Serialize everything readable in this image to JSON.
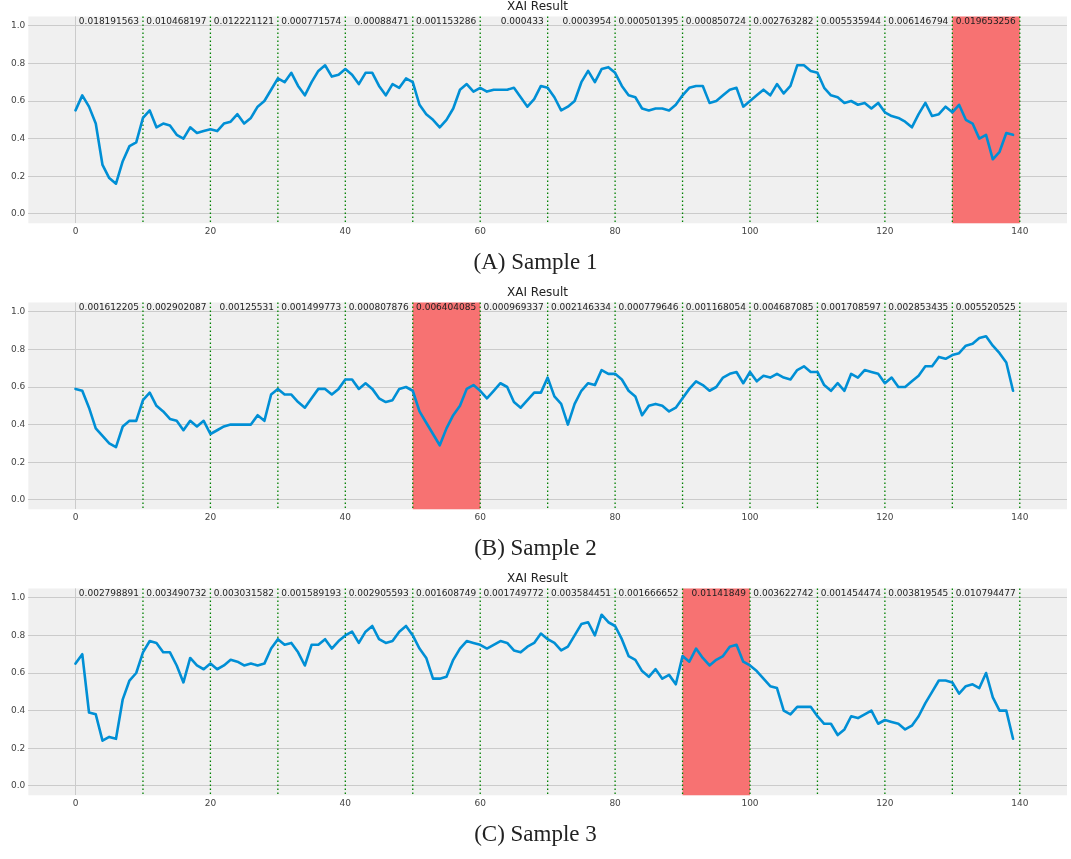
{
  "chart_data": [
    {
      "type": "line",
      "title": "XAI Result",
      "color": "#008fd5",
      "grid": true,
      "xlim": [
        -7,
        147
      ],
      "ylim": [
        -0.05,
        1.05
      ],
      "xticks": [
        0,
        20,
        40,
        60,
        80,
        100,
        120,
        140
      ],
      "yticks": [
        {
          "value": 0,
          "label": "0.0"
        },
        {
          "value": 0.2,
          "label": "0.2"
        },
        {
          "value": 0.4,
          "label": "0.4"
        },
        {
          "value": 0.6,
          "label": "0.6"
        },
        {
          "value": 0.8,
          "label": "0.8"
        },
        {
          "value": 1,
          "label": "1.0"
        }
      ],
      "x": [
        0,
        1,
        2,
        3,
        4,
        5,
        6,
        7,
        8,
        9,
        10,
        11,
        12,
        13,
        14,
        15,
        16,
        17,
        18,
        19,
        20,
        21,
        22,
        23,
        24,
        25,
        26,
        27,
        28,
        29,
        30,
        31,
        32,
        33,
        34,
        35,
        36,
        37,
        38,
        39,
        40,
        41,
        42,
        43,
        44,
        45,
        46,
        47,
        48,
        49,
        50,
        51,
        52,
        53,
        54,
        55,
        56,
        57,
        58,
        59,
        60,
        61,
        62,
        63,
        64,
        65,
        66,
        67,
        68,
        69,
        70,
        71,
        72,
        73,
        74,
        75,
        76,
        77,
        78,
        79,
        80,
        81,
        82,
        83,
        84,
        85,
        86,
        87,
        88,
        89,
        90,
        91,
        92,
        93,
        94,
        95,
        96,
        97,
        98,
        99,
        100,
        101,
        102,
        103,
        104,
        105,
        106,
        107,
        108,
        109,
        110,
        111,
        112,
        113,
        114,
        115,
        116,
        117,
        118,
        119,
        120,
        121,
        122,
        123,
        124,
        125,
        126,
        127,
        128,
        129,
        130,
        131,
        132,
        133,
        134,
        135,
        136,
        137,
        138,
        139
      ],
      "values": [
        0.55,
        0.63,
        0.57,
        0.48,
        0.26,
        0.19,
        0.16,
        0.28,
        0.36,
        0.38,
        0.51,
        0.55,
        0.46,
        0.48,
        0.47,
        0.42,
        0.4,
        0.46,
        0.43,
        0.44,
        0.45,
        0.44,
        0.48,
        0.49,
        0.53,
        0.48,
        0.51,
        0.57,
        0.6,
        0.66,
        0.72,
        0.7,
        0.75,
        0.68,
        0.63,
        0.7,
        0.76,
        0.79,
        0.73,
        0.74,
        0.77,
        0.74,
        0.69,
        0.75,
        0.75,
        0.68,
        0.63,
        0.69,
        0.67,
        0.72,
        0.7,
        0.58,
        0.53,
        0.5,
        0.46,
        0.5,
        0.56,
        0.66,
        0.69,
        0.65,
        0.67,
        0.65,
        0.66,
        0.66,
        0.66,
        0.67,
        0.62,
        0.57,
        0.61,
        0.68,
        0.67,
        0.62,
        0.55,
        0.57,
        0.6,
        0.7,
        0.76,
        0.7,
        0.77,
        0.78,
        0.75,
        0.68,
        0.63,
        0.62,
        0.56,
        0.55,
        0.56,
        0.56,
        0.55,
        0.58,
        0.63,
        0.67,
        0.68,
        0.68,
        0.59,
        0.6,
        0.63,
        0.66,
        0.67,
        0.57,
        0.6,
        0.63,
        0.66,
        0.63,
        0.69,
        0.64,
        0.68,
        0.79,
        0.79,
        0.76,
        0.75,
        0.67,
        0.63,
        0.62,
        0.59,
        0.6,
        0.58,
        0.59,
        0.56,
        0.59,
        0.54,
        0.52,
        0.51,
        0.49,
        0.46,
        0.53,
        0.59,
        0.52,
        0.53,
        0.57,
        0.54,
        0.58,
        0.5,
        0.48,
        0.4,
        0.42,
        0.29,
        0.33,
        0.43,
        0.42
      ],
      "bands": [
        {
          "axis": "x",
          "from": 130,
          "to": 140,
          "color": "#f77272"
        }
      ],
      "ref_lines": [
        {
          "axis": "x",
          "value": 10,
          "color": "#008000",
          "line_style": "dotted"
        },
        {
          "axis": "x",
          "value": 20,
          "color": "#008000",
          "line_style": "dotted"
        },
        {
          "axis": "x",
          "value": 30,
          "color": "#008000",
          "line_style": "dotted"
        },
        {
          "axis": "x",
          "value": 40,
          "color": "#008000",
          "line_style": "dotted"
        },
        {
          "axis": "x",
          "value": 50,
          "color": "#008000",
          "line_style": "dotted"
        },
        {
          "axis": "x",
          "value": 60,
          "color": "#008000",
          "line_style": "dotted"
        },
        {
          "axis": "x",
          "value": 70,
          "color": "#008000",
          "line_style": "dotted"
        },
        {
          "axis": "x",
          "value": 80,
          "color": "#008000",
          "line_style": "dotted"
        },
        {
          "axis": "x",
          "value": 90,
          "color": "#008000",
          "line_style": "dotted"
        },
        {
          "axis": "x",
          "value": 100,
          "color": "#008000",
          "line_style": "dotted"
        },
        {
          "axis": "x",
          "value": 110,
          "color": "#008000",
          "line_style": "dotted"
        },
        {
          "axis": "x",
          "value": 120,
          "color": "#008000",
          "line_style": "dotted"
        },
        {
          "axis": "x",
          "value": 130,
          "color": "#008000",
          "line_style": "dotted"
        },
        {
          "axis": "x",
          "value": 140,
          "color": "#008000",
          "line_style": "dotted"
        }
      ],
      "annotations": [
        "0.018191563",
        "0.010468197",
        "0.012221121",
        "0.000771574",
        "0.00088471",
        "0.001153286",
        "0.000433",
        "0.0003954",
        "0.000501395",
        "0.000850724",
        "0.002763282",
        "0.005535944",
        "0.006146794",
        "0.019653256",
        "(A) Sample 1"
      ]
    },
    {
      "type": "line",
      "title": "XAI Result",
      "color": "#008fd5",
      "grid": true,
      "xlim": [
        -7,
        147
      ],
      "ylim": [
        -0.05,
        1.05
      ],
      "xticks": [
        0,
        20,
        40,
        60,
        80,
        100,
        120,
        140
      ],
      "yticks": [
        {
          "value": 0,
          "label": "0.0"
        },
        {
          "value": 0.2,
          "label": "0.2"
        },
        {
          "value": 0.4,
          "label": "0.4"
        },
        {
          "value": 0.6,
          "label": "0.6"
        },
        {
          "value": 0.8,
          "label": "0.8"
        },
        {
          "value": 1,
          "label": "1.0"
        }
      ],
      "x": [
        0,
        1,
        2,
        3,
        4,
        5,
        6,
        7,
        8,
        9,
        10,
        11,
        12,
        13,
        14,
        15,
        16,
        17,
        18,
        19,
        20,
        21,
        22,
        23,
        24,
        25,
        26,
        27,
        28,
        29,
        30,
        31,
        32,
        33,
        34,
        35,
        36,
        37,
        38,
        39,
        40,
        41,
        42,
        43,
        44,
        45,
        46,
        47,
        48,
        49,
        50,
        51,
        52,
        53,
        54,
        55,
        56,
        57,
        58,
        59,
        60,
        61,
        62,
        63,
        64,
        65,
        66,
        67,
        68,
        69,
        70,
        71,
        72,
        73,
        74,
        75,
        76,
        77,
        78,
        79,
        80,
        81,
        82,
        83,
        84,
        85,
        86,
        87,
        88,
        89,
        90,
        91,
        92,
        93,
        94,
        95,
        96,
        97,
        98,
        99,
        100,
        101,
        102,
        103,
        104,
        105,
        106,
        107,
        108,
        109,
        110,
        111,
        112,
        113,
        114,
        115,
        116,
        117,
        118,
        119,
        120,
        121,
        122,
        123,
        124,
        125,
        126,
        127,
        128,
        129,
        130,
        131,
        132,
        133,
        134,
        135,
        136,
        137,
        138,
        139
      ],
      "values": [
        0.59,
        0.58,
        0.49,
        0.38,
        0.34,
        0.3,
        0.28,
        0.39,
        0.42,
        0.42,
        0.53,
        0.57,
        0.5,
        0.47,
        0.43,
        0.42,
        0.37,
        0.42,
        0.39,
        0.42,
        0.35,
        0.37,
        0.39,
        0.4,
        0.4,
        0.4,
        0.4,
        0.45,
        0.42,
        0.56,
        0.59,
        0.56,
        0.56,
        0.52,
        0.49,
        0.54,
        0.59,
        0.59,
        0.56,
        0.59,
        0.64,
        0.64,
        0.59,
        0.62,
        0.59,
        0.54,
        0.52,
        0.53,
        0.59,
        0.6,
        0.58,
        0.47,
        0.41,
        0.35,
        0.29,
        0.38,
        0.45,
        0.5,
        0.59,
        0.61,
        0.58,
        0.54,
        0.58,
        0.62,
        0.6,
        0.52,
        0.49,
        0.53,
        0.57,
        0.57,
        0.65,
        0.55,
        0.51,
        0.4,
        0.51,
        0.58,
        0.62,
        0.61,
        0.69,
        0.67,
        0.67,
        0.64,
        0.58,
        0.55,
        0.45,
        0.5,
        0.51,
        0.5,
        0.47,
        0.49,
        0.54,
        0.59,
        0.63,
        0.61,
        0.58,
        0.6,
        0.65,
        0.67,
        0.68,
        0.62,
        0.68,
        0.63,
        0.66,
        0.65,
        0.67,
        0.65,
        0.64,
        0.69,
        0.71,
        0.68,
        0.68,
        0.61,
        0.58,
        0.62,
        0.58,
        0.67,
        0.65,
        0.69,
        0.68,
        0.67,
        0.62,
        0.65,
        0.6,
        0.6,
        0.63,
        0.66,
        0.71,
        0.71,
        0.76,
        0.75,
        0.77,
        0.78,
        0.82,
        0.83,
        0.86,
        0.87,
        0.82,
        0.78,
        0.73,
        0.58
      ],
      "bands": [
        {
          "axis": "x",
          "from": 50,
          "to": 60,
          "color": "#f77272"
        }
      ],
      "ref_lines": [
        {
          "axis": "x",
          "value": 10,
          "color": "#008000",
          "line_style": "dotted"
        },
        {
          "axis": "x",
          "value": 20,
          "color": "#008000",
          "line_style": "dotted"
        },
        {
          "axis": "x",
          "value": 30,
          "color": "#008000",
          "line_style": "dotted"
        },
        {
          "axis": "x",
          "value": 40,
          "color": "#008000",
          "line_style": "dotted"
        },
        {
          "axis": "x",
          "value": 50,
          "color": "#008000",
          "line_style": "dotted"
        },
        {
          "axis": "x",
          "value": 60,
          "color": "#008000",
          "line_style": "dotted"
        },
        {
          "axis": "x",
          "value": 70,
          "color": "#008000",
          "line_style": "dotted"
        },
        {
          "axis": "x",
          "value": 80,
          "color": "#008000",
          "line_style": "dotted"
        },
        {
          "axis": "x",
          "value": 90,
          "color": "#008000",
          "line_style": "dotted"
        },
        {
          "axis": "x",
          "value": 100,
          "color": "#008000",
          "line_style": "dotted"
        },
        {
          "axis": "x",
          "value": 110,
          "color": "#008000",
          "line_style": "dotted"
        },
        {
          "axis": "x",
          "value": 120,
          "color": "#008000",
          "line_style": "dotted"
        },
        {
          "axis": "x",
          "value": 130,
          "color": "#008000",
          "line_style": "dotted"
        },
        {
          "axis": "x",
          "value": 140,
          "color": "#008000",
          "line_style": "dotted"
        }
      ],
      "annotations": [
        "0.001612205",
        "0.002902087",
        "0.00125531",
        "0.001499773",
        "0.000807876",
        "0.006404085",
        "0.000969337",
        "0.002146334",
        "0.000779646",
        "0.001168054",
        "0.004687085",
        "0.001708597",
        "0.002853435",
        "0.005520525",
        "(B) Sample 2"
      ]
    },
    {
      "type": "line",
      "title": "XAI Result",
      "color": "#008fd5",
      "grid": true,
      "xlim": [
        -7,
        147
      ],
      "ylim": [
        -0.05,
        1.05
      ],
      "xticks": [
        0,
        20,
        40,
        60,
        80,
        100,
        120,
        140
      ],
      "yticks": [
        {
          "value": 0,
          "label": "0.0"
        },
        {
          "value": 0.2,
          "label": "0.2"
        },
        {
          "value": 0.4,
          "label": "0.4"
        },
        {
          "value": 0.6,
          "label": "0.6"
        },
        {
          "value": 0.8,
          "label": "0.8"
        },
        {
          "value": 1,
          "label": "1.0"
        }
      ],
      "x": [
        0,
        1,
        2,
        3,
        4,
        5,
        6,
        7,
        8,
        9,
        10,
        11,
        12,
        13,
        14,
        15,
        16,
        17,
        18,
        19,
        20,
        21,
        22,
        23,
        24,
        25,
        26,
        27,
        28,
        29,
        30,
        31,
        32,
        33,
        34,
        35,
        36,
        37,
        38,
        39,
        40,
        41,
        42,
        43,
        44,
        45,
        46,
        47,
        48,
        49,
        50,
        51,
        52,
        53,
        54,
        55,
        56,
        57,
        58,
        59,
        60,
        61,
        62,
        63,
        64,
        65,
        66,
        67,
        68,
        69,
        70,
        71,
        72,
        73,
        74,
        75,
        76,
        77,
        78,
        79,
        80,
        81,
        82,
        83,
        84,
        85,
        86,
        87,
        88,
        89,
        90,
        91,
        92,
        93,
        94,
        95,
        96,
        97,
        98,
        99,
        100,
        101,
        102,
        103,
        104,
        105,
        106,
        107,
        108,
        109,
        110,
        111,
        112,
        113,
        114,
        115,
        116,
        117,
        118,
        119,
        120,
        121,
        122,
        123,
        124,
        125,
        126,
        127,
        128,
        129,
        130,
        131,
        132,
        133,
        134,
        135,
        136,
        137,
        138,
        139
      ],
      "values": [
        0.65,
        0.7,
        0.39,
        0.38,
        0.24,
        0.26,
        0.25,
        0.46,
        0.56,
        0.6,
        0.71,
        0.77,
        0.76,
        0.71,
        0.71,
        0.64,
        0.55,
        0.68,
        0.64,
        0.62,
        0.65,
        0.62,
        0.64,
        0.67,
        0.66,
        0.64,
        0.65,
        0.64,
        0.65,
        0.73,
        0.78,
        0.75,
        0.76,
        0.71,
        0.64,
        0.75,
        0.75,
        0.78,
        0.73,
        0.77,
        0.8,
        0.82,
        0.76,
        0.82,
        0.85,
        0.78,
        0.76,
        0.77,
        0.82,
        0.85,
        0.8,
        0.73,
        0.68,
        0.57,
        0.57,
        0.58,
        0.67,
        0.73,
        0.77,
        0.76,
        0.75,
        0.73,
        0.75,
        0.77,
        0.76,
        0.72,
        0.71,
        0.74,
        0.76,
        0.81,
        0.78,
        0.76,
        0.72,
        0.74,
        0.8,
        0.86,
        0.87,
        0.8,
        0.91,
        0.87,
        0.85,
        0.78,
        0.69,
        0.67,
        0.61,
        0.58,
        0.62,
        0.57,
        0.59,
        0.54,
        0.69,
        0.66,
        0.73,
        0.68,
        0.64,
        0.67,
        0.69,
        0.74,
        0.75,
        0.66,
        0.64,
        0.61,
        0.57,
        0.53,
        0.52,
        0.4,
        0.38,
        0.42,
        0.42,
        0.42,
        0.37,
        0.33,
        0.33,
        0.27,
        0.3,
        0.37,
        0.36,
        0.38,
        0.4,
        0.33,
        0.35,
        0.34,
        0.33,
        0.3,
        0.32,
        0.37,
        0.44,
        0.5,
        0.56,
        0.56,
        0.55,
        0.49,
        0.53,
        0.54,
        0.52,
        0.6,
        0.47,
        0.4,
        0.4,
        0.25
      ],
      "bands": [
        {
          "axis": "x",
          "from": 90,
          "to": 100,
          "color": "#f77272"
        }
      ],
      "ref_lines": [
        {
          "axis": "x",
          "value": 10,
          "color": "#008000",
          "line_style": "dotted"
        },
        {
          "axis": "x",
          "value": 20,
          "color": "#008000",
          "line_style": "dotted"
        },
        {
          "axis": "x",
          "value": 30,
          "color": "#008000",
          "line_style": "dotted"
        },
        {
          "axis": "x",
          "value": 40,
          "color": "#008000",
          "line_style": "dotted"
        },
        {
          "axis": "x",
          "value": 50,
          "color": "#008000",
          "line_style": "dotted"
        },
        {
          "axis": "x",
          "value": 60,
          "color": "#008000",
          "line_style": "dotted"
        },
        {
          "axis": "x",
          "value": 70,
          "color": "#008000",
          "line_style": "dotted"
        },
        {
          "axis": "x",
          "value": 80,
          "color": "#008000",
          "line_style": "dotted"
        },
        {
          "axis": "x",
          "value": 90,
          "color": "#008000",
          "line_style": "dotted"
        },
        {
          "axis": "x",
          "value": 100,
          "color": "#008000",
          "line_style": "dotted"
        },
        {
          "axis": "x",
          "value": 110,
          "color": "#008000",
          "line_style": "dotted"
        },
        {
          "axis": "x",
          "value": 120,
          "color": "#008000",
          "line_style": "dotted"
        },
        {
          "axis": "x",
          "value": 130,
          "color": "#008000",
          "line_style": "dotted"
        },
        {
          "axis": "x",
          "value": 140,
          "color": "#008000",
          "line_style": "dotted"
        }
      ],
      "annotations": [
        "0.002798891",
        "0.003490732",
        "0.003031582",
        "0.001589193",
        "0.002905593",
        "0.001608749",
        "0.001749772",
        "0.003584451",
        "0.001666652",
        "0.01141849",
        "0.003622742",
        "0.001454474",
        "0.003819545",
        "0.010794477",
        "(C) Sample 3"
      ]
    }
  ]
}
